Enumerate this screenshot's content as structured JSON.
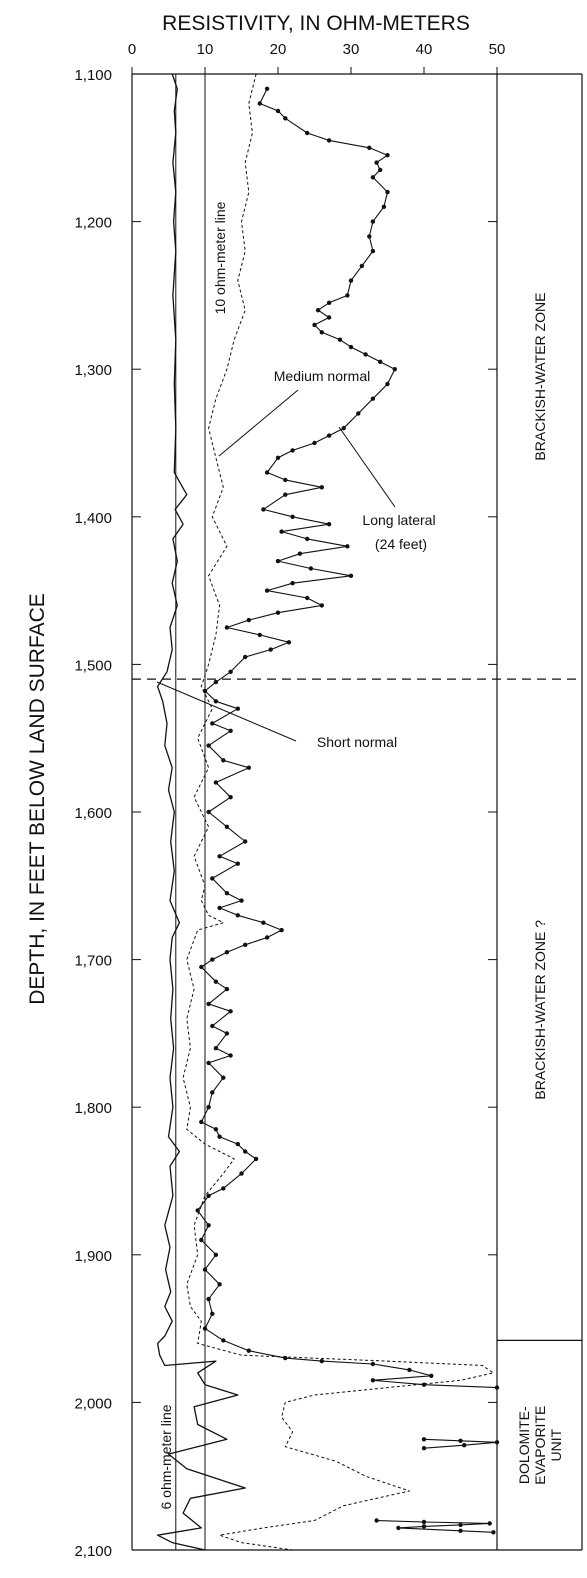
{
  "chart_data": {
    "type": "line",
    "xlabel": "RESISTIVITY, IN OHM-METERS",
    "ylabel": "DEPTH, IN FEET BELOW LAND SURFACE",
    "xlim": [
      0,
      50
    ],
    "ylim": [
      1100,
      2100
    ],
    "y_inverted": true,
    "x_ticks": [
      "0",
      "10",
      "20",
      "30",
      "40",
      "50"
    ],
    "y_ticks": [
      "1,100",
      "1,200",
      "1,300",
      "1,400",
      "1,500",
      "1,600",
      "1,700",
      "1,800",
      "1,900",
      "2,000",
      "2,100"
    ],
    "reference_lines": [
      {
        "label": "6 ohm-meter line",
        "x": 6
      },
      {
        "label": "10 ohm-meter line",
        "x": 10
      }
    ],
    "zone_boundaries": [
      1510,
      1958
    ],
    "zones": [
      {
        "label": "BRACKISH-WATER ZONE",
        "top": 1100,
        "bottom": 1510
      },
      {
        "label": "BRACKISH-WATER ZONE ?",
        "top": 1510,
        "bottom": 1958
      },
      {
        "label": "DOLOMITE-\nEVAPORITE\nUNIT",
        "top": 1958,
        "bottom": 2100
      }
    ],
    "series": [
      {
        "name": "Short normal",
        "style": "solid",
        "points": [
          [
            5.5,
            1100
          ],
          [
            6.2,
            1110
          ],
          [
            5.8,
            1125
          ],
          [
            6.0,
            1140
          ],
          [
            5.6,
            1160
          ],
          [
            6.0,
            1180
          ],
          [
            5.7,
            1200
          ],
          [
            6.0,
            1220
          ],
          [
            5.6,
            1250
          ],
          [
            6.0,
            1280
          ],
          [
            5.8,
            1310
          ],
          [
            6.0,
            1340
          ],
          [
            5.8,
            1370
          ],
          [
            7.5,
            1385
          ],
          [
            5.9,
            1395
          ],
          [
            7.0,
            1405
          ],
          [
            5.6,
            1415
          ],
          [
            6.2,
            1430
          ],
          [
            5.5,
            1445
          ],
          [
            6.2,
            1460
          ],
          [
            5.2,
            1475
          ],
          [
            5.5,
            1490
          ],
          [
            4.8,
            1505
          ],
          [
            3.5,
            1515
          ],
          [
            4.2,
            1525
          ],
          [
            4.8,
            1540
          ],
          [
            4.5,
            1555
          ],
          [
            5.5,
            1570
          ],
          [
            5.0,
            1585
          ],
          [
            5.8,
            1600
          ],
          [
            5.3,
            1620
          ],
          [
            5.8,
            1640
          ],
          [
            5.2,
            1660
          ],
          [
            6.5,
            1675
          ],
          [
            5.5,
            1685
          ],
          [
            5.2,
            1700
          ],
          [
            5.6,
            1720
          ],
          [
            5.3,
            1740
          ],
          [
            5.7,
            1760
          ],
          [
            5.2,
            1780
          ],
          [
            5.6,
            1800
          ],
          [
            5.0,
            1820
          ],
          [
            6.5,
            1830
          ],
          [
            5.2,
            1840
          ],
          [
            5.6,
            1860
          ],
          [
            4.5,
            1880
          ],
          [
            5.2,
            1895
          ],
          [
            4.6,
            1910
          ],
          [
            5.3,
            1925
          ],
          [
            4.5,
            1935
          ],
          [
            5.5,
            1945
          ],
          [
            4.5,
            1955
          ],
          [
            3.5,
            1960
          ],
          [
            3.8,
            1968
          ],
          [
            4.5,
            1975
          ],
          [
            11.5,
            1972
          ],
          [
            9.0,
            1980
          ],
          [
            10.0,
            1988
          ],
          [
            14.5,
            1995
          ],
          [
            8.5,
            2003
          ],
          [
            9.0,
            2015
          ],
          [
            13.0,
            2025
          ],
          [
            5.0,
            2035
          ],
          [
            7.5,
            2045
          ],
          [
            15.5,
            2058
          ],
          [
            8.0,
            2065
          ],
          [
            7.0,
            2075
          ],
          [
            9.5,
            2085
          ],
          [
            3.5,
            2090
          ],
          [
            5.5,
            2095
          ],
          [
            10.0,
            2100
          ]
        ]
      },
      {
        "name": "Medium normal",
        "style": "dashed",
        "points": [
          [
            17.0,
            1100
          ],
          [
            16.0,
            1120
          ],
          [
            16.5,
            1140
          ],
          [
            15.5,
            1160
          ],
          [
            16.0,
            1180
          ],
          [
            15.0,
            1200
          ],
          [
            15.5,
            1220
          ],
          [
            14.5,
            1240
          ],
          [
            15.5,
            1260
          ],
          [
            14.0,
            1280
          ],
          [
            13.0,
            1300
          ],
          [
            11.5,
            1320
          ],
          [
            10.5,
            1340
          ],
          [
            11.5,
            1360
          ],
          [
            12.5,
            1380
          ],
          [
            11.0,
            1400
          ],
          [
            13.0,
            1420
          ],
          [
            10.5,
            1440
          ],
          [
            12.0,
            1460
          ],
          [
            11.5,
            1480
          ],
          [
            10.5,
            1500
          ],
          [
            9.5,
            1515
          ],
          [
            11.0,
            1530
          ],
          [
            9.0,
            1550
          ],
          [
            10.5,
            1570
          ],
          [
            8.5,
            1590
          ],
          [
            10.5,
            1610
          ],
          [
            8.5,
            1630
          ],
          [
            10.0,
            1650
          ],
          [
            9.5,
            1660
          ],
          [
            10.5,
            1670
          ],
          [
            12.5,
            1675
          ],
          [
            9.0,
            1680
          ],
          [
            7.5,
            1700
          ],
          [
            8.5,
            1720
          ],
          [
            7.5,
            1740
          ],
          [
            8.0,
            1760
          ],
          [
            7.0,
            1780
          ],
          [
            8.0,
            1800
          ],
          [
            7.5,
            1815
          ],
          [
            10.0,
            1825
          ],
          [
            14.0,
            1835
          ],
          [
            12.5,
            1845
          ],
          [
            10.0,
            1860
          ],
          [
            8.5,
            1880
          ],
          [
            9.0,
            1900
          ],
          [
            7.5,
            1920
          ],
          [
            8.0,
            1935
          ],
          [
            9.5,
            1945
          ],
          [
            9.0,
            1960
          ],
          [
            15.0,
            1968
          ],
          [
            35.0,
            1972
          ],
          [
            48.0,
            1975
          ],
          [
            49.5,
            1980
          ],
          [
            45.0,
            1985
          ],
          [
            35.0,
            1990
          ],
          [
            25.0,
            1995
          ],
          [
            21.0,
            2000
          ],
          [
            20.5,
            2010
          ],
          [
            22.0,
            2020
          ],
          [
            21.0,
            2030
          ],
          [
            28.0,
            2040
          ],
          [
            32.0,
            2050
          ],
          [
            38.0,
            2060
          ],
          [
            29.0,
            2070
          ],
          [
            25.0,
            2080
          ],
          [
            18.0,
            2085
          ],
          [
            12.0,
            2090
          ],
          [
            15.0,
            2095
          ],
          [
            22.0,
            2100
          ]
        ]
      },
      {
        "name": "Long lateral (24 feet)",
        "style": "solid-dotted",
        "points": [
          [
            18.5,
            1110
          ],
          [
            17.5,
            1120
          ],
          [
            20.0,
            1125
          ],
          [
            21.0,
            1130
          ],
          [
            24.0,
            1140
          ],
          [
            27.0,
            1145
          ],
          [
            32.5,
            1150
          ],
          [
            35.0,
            1155
          ],
          [
            33.5,
            1160
          ],
          [
            34.0,
            1165
          ],
          [
            33.0,
            1170
          ],
          [
            35.0,
            1180
          ],
          [
            34.5,
            1190
          ],
          [
            33.0,
            1200
          ],
          [
            32.5,
            1210
          ],
          [
            33.0,
            1220
          ],
          [
            31.5,
            1230
          ],
          [
            30.0,
            1240
          ],
          [
            29.5,
            1250
          ],
          [
            27.0,
            1255
          ],
          [
            25.5,
            1260
          ],
          [
            27.0,
            1265
          ],
          [
            25.0,
            1270
          ],
          [
            26.0,
            1275
          ],
          [
            28.5,
            1280
          ],
          [
            30.0,
            1285
          ],
          [
            32.0,
            1290
          ],
          [
            34.0,
            1295
          ],
          [
            36.0,
            1300
          ],
          [
            35.0,
            1310
          ],
          [
            33.0,
            1320
          ],
          [
            31.0,
            1330
          ],
          [
            29.0,
            1340
          ],
          [
            27.0,
            1345
          ],
          [
            25.0,
            1350
          ],
          [
            22.0,
            1355
          ],
          [
            20.0,
            1360
          ],
          [
            18.5,
            1370
          ],
          [
            21.0,
            1375
          ],
          [
            26.0,
            1380
          ],
          [
            21.0,
            1385
          ],
          [
            18.0,
            1395
          ],
          [
            22.0,
            1400
          ],
          [
            27.0,
            1405
          ],
          [
            20.5,
            1410
          ],
          [
            24.0,
            1415
          ],
          [
            29.5,
            1420
          ],
          [
            23.0,
            1425
          ],
          [
            20.0,
            1430
          ],
          [
            24.5,
            1435
          ],
          [
            30.0,
            1440
          ],
          [
            22.0,
            1445
          ],
          [
            18.5,
            1450
          ],
          [
            24.0,
            1455
          ],
          [
            26.0,
            1460
          ],
          [
            20.0,
            1465
          ],
          [
            16.0,
            1470
          ],
          [
            13.0,
            1475
          ],
          [
            17.5,
            1480
          ],
          [
            21.5,
            1485
          ],
          [
            19.0,
            1490
          ],
          [
            15.5,
            1495
          ],
          [
            13.5,
            1505
          ],
          [
            11.5,
            1512
          ],
          [
            10.0,
            1518
          ],
          [
            11.5,
            1525
          ],
          [
            14.5,
            1530
          ],
          [
            11.0,
            1540
          ],
          [
            13.5,
            1545
          ],
          [
            10.5,
            1555
          ],
          [
            12.5,
            1565
          ],
          [
            16.0,
            1570
          ],
          [
            11.5,
            1580
          ],
          [
            13.5,
            1590
          ],
          [
            10.5,
            1600
          ],
          [
            13.0,
            1610
          ],
          [
            15.5,
            1620
          ],
          [
            12.0,
            1630
          ],
          [
            14.5,
            1635
          ],
          [
            11.0,
            1645
          ],
          [
            13.0,
            1655
          ],
          [
            15.0,
            1660
          ],
          [
            12.0,
            1665
          ],
          [
            14.5,
            1670
          ],
          [
            18.0,
            1675
          ],
          [
            20.5,
            1680
          ],
          [
            18.5,
            1685
          ],
          [
            15.5,
            1690
          ],
          [
            13.0,
            1695
          ],
          [
            11.0,
            1700
          ],
          [
            9.5,
            1705
          ],
          [
            11.5,
            1715
          ],
          [
            13.0,
            1720
          ],
          [
            10.5,
            1730
          ],
          [
            13.5,
            1735
          ],
          [
            11.0,
            1745
          ],
          [
            13.0,
            1750
          ],
          [
            11.5,
            1760
          ],
          [
            13.5,
            1765
          ],
          [
            10.5,
            1770
          ],
          [
            12.5,
            1780
          ],
          [
            11.0,
            1790
          ],
          [
            10.5,
            1800
          ],
          [
            9.5,
            1810
          ],
          [
            11.5,
            1815
          ],
          [
            12.0,
            1820
          ],
          [
            14.5,
            1825
          ],
          [
            15.5,
            1830
          ],
          [
            17.0,
            1835
          ],
          [
            15.0,
            1845
          ],
          [
            12.5,
            1855
          ],
          [
            10.5,
            1860
          ],
          [
            9.0,
            1870
          ],
          [
            10.5,
            1880
          ],
          [
            9.5,
            1890
          ],
          [
            11.5,
            1900
          ],
          [
            10.0,
            1910
          ],
          [
            12.0,
            1920
          ],
          [
            10.5,
            1930
          ],
          [
            11.0,
            1940
          ],
          [
            10.0,
            1950
          ],
          [
            12.5,
            1958
          ],
          [
            16.0,
            1965
          ],
          [
            21.0,
            1970
          ],
          [
            26.0,
            1972
          ],
          [
            33.0,
            1974
          ],
          [
            38.0,
            1978
          ],
          [
            41.0,
            1982
          ],
          [
            33.0,
            1985
          ],
          [
            40.0,
            1988
          ],
          [
            50.0,
            1990
          ]
        ]
      },
      {
        "name": "Long lateral (24 feet) segment 2",
        "style": "solid-dotted",
        "points": [
          [
            40.0,
            2025
          ],
          [
            45.0,
            2026
          ],
          [
            50.0,
            2027
          ],
          [
            45.5,
            2029
          ],
          [
            40.0,
            2031
          ]
        ]
      },
      {
        "name": "Long lateral (24 feet) segment 3",
        "style": "solid-dotted",
        "points": [
          [
            33.5,
            2080
          ],
          [
            40.0,
            2081
          ],
          [
            49.0,
            2082
          ],
          [
            45.0,
            2083
          ],
          [
            40.0,
            2084
          ],
          [
            36.5,
            2085
          ],
          [
            45.0,
            2087
          ],
          [
            49.5,
            2088
          ]
        ]
      }
    ],
    "annotations": [
      {
        "text": "10 ohm-meter line"
      },
      {
        "text": "6 ohm-meter line"
      },
      {
        "text": "Medium normal"
      },
      {
        "text": "Long lateral"
      },
      {
        "text": "(24 feet)"
      },
      {
        "text": "Short normal"
      }
    ]
  }
}
